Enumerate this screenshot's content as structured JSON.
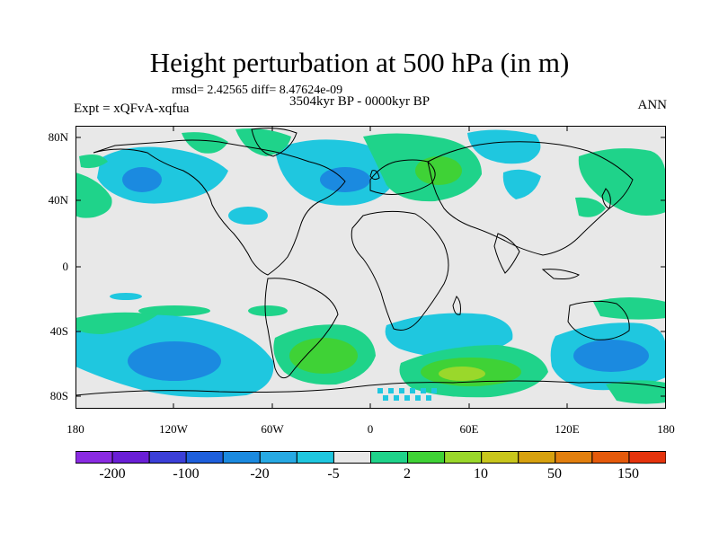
{
  "header": {
    "title": "Height perturbation at 500 hPa (in m)",
    "stats": "rmsd= 2.42565  diff= 8.47624e-09",
    "period": "3504kyr BP - 0000kyr BP",
    "experiment": "Expt = xQFvA-xqfua",
    "season": "ANN"
  },
  "axes": {
    "y_ticks": [
      "80N",
      "40N",
      "0",
      "40S",
      "80S"
    ],
    "x_ticks": [
      "180",
      "120W",
      "60W",
      "0",
      "60E",
      "120E",
      "180"
    ]
  },
  "colorbar": {
    "labels": [
      "-200",
      "-100",
      "-20",
      "-5",
      "2",
      "10",
      "50",
      "150"
    ],
    "colors": [
      "#8a2be2",
      "#6a1fd6",
      "#3b3fd8",
      "#1e5fdc",
      "#1b8ae0",
      "#27a9e3",
      "#1fc7df",
      "#e8e8e8",
      "#1fd38a",
      "#3fd236",
      "#9ad82b",
      "#c8c61c",
      "#d7a10f",
      "#e27f0e",
      "#e55a0b",
      "#e5330c"
    ]
  },
  "map": {
    "background_color": "#e8e8e8",
    "coastline_color": "#000000",
    "contour_colors": {
      "cyan": "#1fc7df",
      "blue": "#1b8ae0",
      "green": "#1fd38a",
      "lightgreen": "#3fd236",
      "yellowgreen": "#9ad82b"
    }
  }
}
